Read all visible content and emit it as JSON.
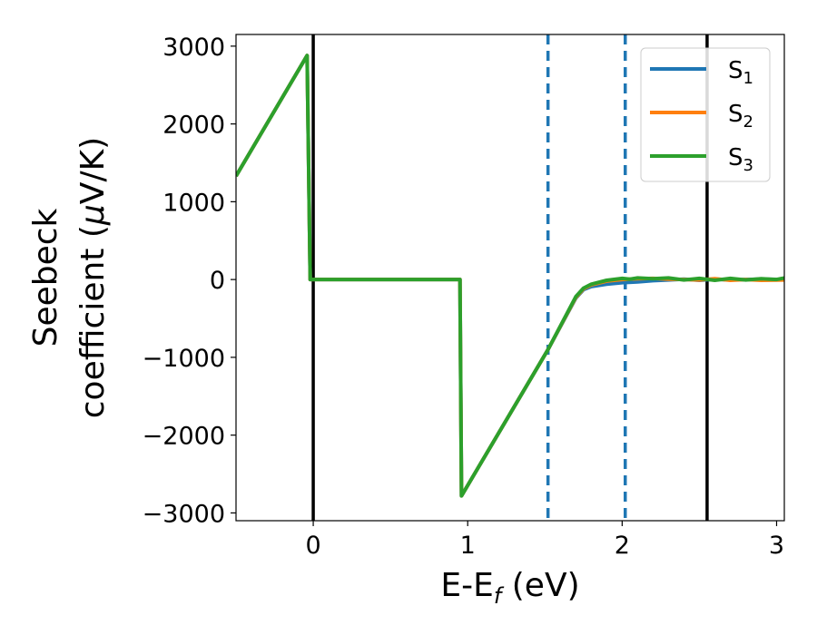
{
  "chart_data": {
    "type": "line",
    "xlabel": {
      "main": "E-E",
      "sub": "f",
      "rest": " (eV)"
    },
    "ylabel": {
      "line1": "Seebeck",
      "line2_text": "coefficient  (",
      "line2_mu": "μ",
      "line2_end": "V/K)"
    },
    "xlim": [
      -0.5,
      3.05
    ],
    "ylim": [
      -3100,
      3150
    ],
    "xticks": [
      0,
      1,
      2,
      3
    ],
    "xtick_labels": [
      "0",
      "1",
      "2",
      "3"
    ],
    "yticks": [
      3000,
      2000,
      1000,
      0,
      -1000,
      -2000,
      -3000
    ],
    "ytick_labels": [
      "3000",
      "2000",
      "1000",
      "0",
      "−1000",
      "−2000",
      "−3000"
    ],
    "grid": false,
    "legend_position": "top-right",
    "vlines": [
      {
        "x": 0.0,
        "style": "solid",
        "color": "#000000"
      },
      {
        "x": 2.55,
        "style": "solid",
        "color": "#000000"
      },
      {
        "x": 1.52,
        "style": "dashed",
        "color": "#1f77b4"
      },
      {
        "x": 2.02,
        "style": "dashed",
        "color": "#1f77b4"
      }
    ],
    "series": [
      {
        "name": "S",
        "sub": "1",
        "color": "#1f77b4",
        "x": [
          -0.5,
          -0.04,
          -0.02,
          0.95,
          0.96,
          1.52,
          1.7,
          1.75,
          1.8,
          1.9,
          2.0,
          2.1,
          2.2,
          2.3,
          2.4,
          2.5,
          2.6,
          2.7,
          2.8,
          2.9,
          3.05
        ],
        "y": [
          1330,
          2880,
          0,
          0,
          -2780,
          -900,
          -240,
          -130,
          -90,
          -60,
          -40,
          -30,
          -15,
          -5,
          5,
          -10,
          5,
          -5,
          0,
          5,
          0
        ]
      },
      {
        "name": "S",
        "sub": "2",
        "color": "#ff7f0e",
        "x": [
          -0.5,
          -0.04,
          -0.02,
          0.95,
          0.96,
          1.52,
          1.7,
          1.75,
          1.8,
          1.9,
          2.0,
          2.1,
          2.2,
          2.3,
          2.4,
          2.5,
          2.6,
          2.7,
          2.8,
          2.9,
          3.05
        ],
        "y": [
          1330,
          2880,
          0,
          0,
          -2780,
          -900,
          -230,
          -120,
          -70,
          -20,
          0,
          10,
          15,
          5,
          0,
          -5,
          10,
          -10,
          0,
          -10,
          -5
        ]
      },
      {
        "name": "S",
        "sub": "3",
        "color": "#2ca02c",
        "x": [
          -0.5,
          -0.04,
          -0.02,
          0.95,
          0.96,
          1.52,
          1.7,
          1.75,
          1.8,
          1.9,
          2.0,
          2.05,
          2.1,
          2.2,
          2.3,
          2.4,
          2.5,
          2.6,
          2.7,
          2.8,
          2.9,
          3.0,
          3.05
        ],
        "y": [
          1330,
          2880,
          0,
          0,
          -2780,
          -900,
          -220,
          -110,
          -60,
          -10,
          15,
          5,
          20,
          10,
          20,
          -5,
          15,
          -10,
          15,
          -5,
          10,
          0,
          20
        ]
      }
    ]
  }
}
